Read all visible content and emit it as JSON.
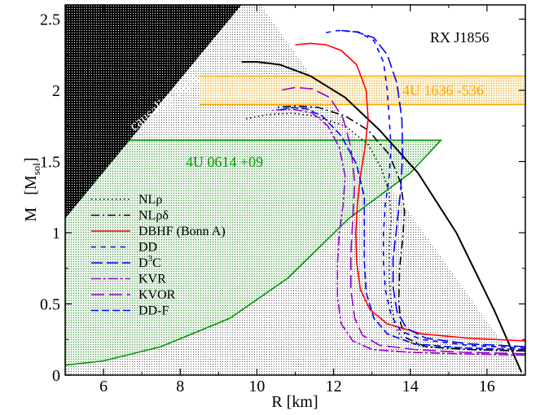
{
  "chart_data": {
    "type": "line",
    "xlabel": "R [km]",
    "ylabel_main": "M",
    "ylabel_unit": "M",
    "ylabel_unit_sub": "sol",
    "xlim": [
      5,
      17
    ],
    "ylim": [
      0,
      2.6
    ],
    "x_ticks": [
      6,
      8,
      10,
      12,
      14,
      16
    ],
    "y_ticks": [
      0,
      0.5,
      1,
      1.5,
      2,
      2.5
    ],
    "x_tick_labels": [
      "6",
      "8",
      "10",
      "12",
      "14",
      "16"
    ],
    "y_tick_labels": [
      "0",
      "0.5",
      "1",
      "1.5",
      "2",
      "2.5"
    ],
    "grid": false,
    "legend_position": "left-middle",
    "colors": {
      "black": "#000000",
      "red": "#ff0000",
      "blue": "#0000ff",
      "violet": "#9900cc",
      "orange": "#ffa500",
      "green": "#009900"
    },
    "annotations": {
      "causality": "causality limit",
      "rx": "RX J1856",
      "u1636": "4U 1636 -536",
      "u0614": "4U 0614 +09"
    },
    "regions": {
      "causality_limit": [
        [
          5,
          1.1
        ],
        [
          9.6,
          2.6
        ],
        [
          5,
          2.6
        ]
      ],
      "rx_j1856": [
        [
          9.6,
          2.6
        ],
        [
          10.1,
          2.6
        ],
        [
          17,
          0
        ],
        [
          5,
          0
        ],
        [
          5,
          1.1
        ]
      ],
      "u1636_band": {
        "ymin": 1.9,
        "ymax": 2.1,
        "xmin": 8.5,
        "xmax": 17
      },
      "u0614": [
        [
          5,
          0.07
        ],
        [
          6,
          0.1
        ],
        [
          7.5,
          0.2
        ],
        [
          9.3,
          0.4
        ],
        [
          10.8,
          0.68
        ],
        [
          12.4,
          1.1
        ],
        [
          14.0,
          1.42
        ],
        [
          14.8,
          1.65
        ],
        [
          7.5,
          1.65
        ],
        [
          5,
          1.65
        ]
      ]
    },
    "series": [
      {
        "name": "NLρ",
        "color": "#000000",
        "dash": "1.5,3.5",
        "points": [
          [
            17.0,
            0.17
          ],
          [
            15.5,
            0.18
          ],
          [
            14.3,
            0.2
          ],
          [
            13.8,
            0.25
          ],
          [
            13.6,
            0.35
          ],
          [
            13.5,
            0.5
          ],
          [
            13.45,
            0.7
          ],
          [
            13.45,
            0.9
          ],
          [
            13.5,
            1.1
          ],
          [
            13.45,
            1.28
          ],
          [
            13.25,
            1.45
          ],
          [
            12.9,
            1.62
          ],
          [
            12.3,
            1.75
          ],
          [
            11.5,
            1.82
          ],
          [
            10.9,
            1.84
          ],
          [
            10.3,
            1.83
          ],
          [
            9.7,
            1.8
          ]
        ]
      },
      {
        "name": "NLρδ",
        "color": "#000000",
        "dash": "10,4,2,4",
        "points": [
          [
            17.0,
            0.17
          ],
          [
            15.5,
            0.18
          ],
          [
            14.4,
            0.2
          ],
          [
            13.9,
            0.26
          ],
          [
            13.75,
            0.36
          ],
          [
            13.7,
            0.52
          ],
          [
            13.72,
            0.75
          ],
          [
            13.8,
            0.95
          ],
          [
            13.85,
            1.15
          ],
          [
            13.75,
            1.35
          ],
          [
            13.45,
            1.55
          ],
          [
            12.9,
            1.72
          ],
          [
            12.3,
            1.82
          ],
          [
            11.6,
            1.88
          ],
          [
            11.0,
            1.89
          ],
          [
            10.5,
            1.88
          ]
        ]
      },
      {
        "name": "DBHF (Bonn A)",
        "color": "#ff0000",
        "dash": "",
        "points": [
          [
            17.0,
            0.24
          ],
          [
            15.5,
            0.26
          ],
          [
            14.3,
            0.29
          ],
          [
            13.4,
            0.36
          ],
          [
            12.95,
            0.46
          ],
          [
            12.7,
            0.6
          ],
          [
            12.6,
            0.8
          ],
          [
            12.58,
            1.0
          ],
          [
            12.62,
            1.2
          ],
          [
            12.7,
            1.4
          ],
          [
            12.82,
            1.6
          ],
          [
            12.9,
            1.8
          ],
          [
            12.85,
            2.0
          ],
          [
            12.6,
            2.18
          ],
          [
            12.2,
            2.28
          ],
          [
            11.8,
            2.32
          ],
          [
            11.4,
            2.33
          ],
          [
            11.0,
            2.32
          ]
        ]
      },
      {
        "name": "DD",
        "color": "#0000ff",
        "dash": "6,6",
        "points": [
          [
            17.0,
            0.19
          ],
          [
            15.5,
            0.21
          ],
          [
            14.3,
            0.25
          ],
          [
            13.75,
            0.31
          ],
          [
            13.5,
            0.42
          ],
          [
            13.35,
            0.6
          ],
          [
            13.3,
            0.8
          ],
          [
            13.3,
            1.0
          ],
          [
            13.35,
            1.2
          ],
          [
            13.45,
            1.4
          ],
          [
            13.5,
            1.6
          ],
          [
            13.45,
            1.8
          ],
          [
            13.4,
            2.0
          ],
          [
            13.3,
            2.2
          ],
          [
            13.05,
            2.35
          ],
          [
            12.65,
            2.41
          ],
          [
            12.1,
            2.42
          ],
          [
            11.7,
            2.4
          ]
        ]
      },
      {
        "name": "D3C",
        "color": "#0000ff",
        "dash": "14,5",
        "points": [
          [
            17.0,
            0.2
          ],
          [
            15.5,
            0.22
          ],
          [
            14.4,
            0.26
          ],
          [
            13.9,
            0.33
          ],
          [
            13.65,
            0.45
          ],
          [
            13.55,
            0.62
          ],
          [
            13.55,
            0.82
          ],
          [
            13.65,
            1.05
          ],
          [
            13.75,
            1.3
          ],
          [
            13.8,
            1.55
          ],
          [
            13.78,
            1.8
          ],
          [
            13.65,
            2.05
          ],
          [
            13.4,
            2.25
          ],
          [
            13.05,
            2.37
          ],
          [
            12.6,
            2.41
          ],
          [
            12.2,
            2.42
          ]
        ]
      },
      {
        "name": "KVR",
        "color": "#9900cc",
        "dash": "12,3,3,3",
        "points": [
          [
            17.0,
            0.14
          ],
          [
            15.3,
            0.15
          ],
          [
            14.0,
            0.16
          ],
          [
            13.0,
            0.18
          ],
          [
            12.5,
            0.24
          ],
          [
            12.2,
            0.36
          ],
          [
            12.1,
            0.55
          ],
          [
            12.1,
            0.78
          ],
          [
            12.15,
            1.0
          ],
          [
            12.25,
            1.2
          ],
          [
            12.3,
            1.4
          ],
          [
            12.15,
            1.6
          ],
          [
            11.85,
            1.75
          ],
          [
            11.45,
            1.84
          ],
          [
            10.9,
            1.87
          ],
          [
            10.4,
            1.86
          ]
        ]
      },
      {
        "name": "KVOR",
        "color": "#9900cc",
        "dash": "16,6",
        "points": [
          [
            17.0,
            0.15
          ],
          [
            15.4,
            0.16
          ],
          [
            14.1,
            0.18
          ],
          [
            13.2,
            0.21
          ],
          [
            12.75,
            0.28
          ],
          [
            12.55,
            0.4
          ],
          [
            12.45,
            0.6
          ],
          [
            12.45,
            0.85
          ],
          [
            12.5,
            1.1
          ],
          [
            12.55,
            1.35
          ],
          [
            12.45,
            1.6
          ],
          [
            12.25,
            1.8
          ],
          [
            11.9,
            1.95
          ],
          [
            11.45,
            2.01
          ],
          [
            11.0,
            2.02
          ],
          [
            10.6,
            2.0
          ]
        ]
      },
      {
        "name": "DD-F",
        "color": "#0000ff",
        "dash": "9,4",
        "points": [
          [
            17.0,
            0.18
          ],
          [
            15.4,
            0.19
          ],
          [
            14.1,
            0.22
          ],
          [
            13.4,
            0.29
          ],
          [
            13.05,
            0.4
          ],
          [
            12.85,
            0.58
          ],
          [
            12.8,
            0.8
          ],
          [
            12.8,
            1.02
          ],
          [
            12.8,
            1.25
          ],
          [
            12.6,
            1.48
          ],
          [
            12.2,
            1.68
          ],
          [
            11.7,
            1.82
          ],
          [
            11.3,
            1.87
          ],
          [
            10.9,
            1.88
          ],
          [
            10.6,
            1.86
          ]
        ]
      }
    ],
    "causal_boundary": [
      [
        9.6,
        2.2
      ],
      [
        10.0,
        2.2
      ],
      [
        10.6,
        2.18
      ],
      [
        11.4,
        2.1
      ],
      [
        12.3,
        1.95
      ],
      [
        13.2,
        1.72
      ],
      [
        14.2,
        1.42
      ],
      [
        15.2,
        1.0
      ],
      [
        16.2,
        0.45
      ],
      [
        16.9,
        0.02
      ]
    ],
    "legend": [
      {
        "label": "NLρ",
        "color": "#000000",
        "dash": "1.5,3.5"
      },
      {
        "label": "NLρδ",
        "color": "#000000",
        "dash": "10,4,2,4"
      },
      {
        "label": "DBHF (Bonn A)",
        "color": "#ff0000",
        "dash": ""
      },
      {
        "label": "DD",
        "color": "#0000ff",
        "dash": "6,6"
      },
      {
        "label": "D",
        "sup": "3",
        "suffix": "C",
        "color": "#0000ff",
        "dash": "14,5"
      },
      {
        "label": "KVR",
        "color": "#9900cc",
        "dash": "12,3,3,3"
      },
      {
        "label": "KVOR",
        "color": "#9900cc",
        "dash": "16,6"
      },
      {
        "label": "DD-F",
        "color": "#0000ff",
        "dash": "9,4"
      }
    ]
  }
}
